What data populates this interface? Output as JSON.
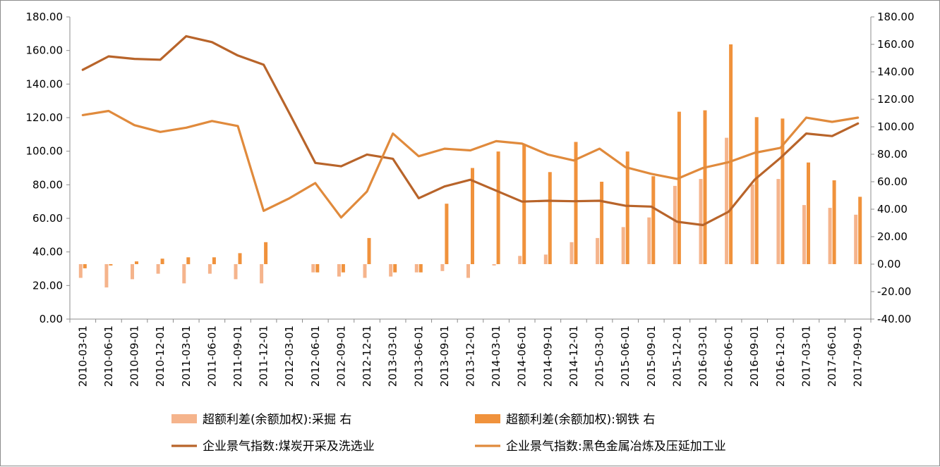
{
  "chart_data": {
    "type": "bar+line",
    "title": "",
    "categories": [
      "2010-03-01",
      "2010-06-01",
      "2010-09-01",
      "2010-12-01",
      "2011-03-01",
      "2011-06-01",
      "2011-09-01",
      "2011-12-01",
      "2012-03-01",
      "2012-06-01",
      "2012-09-01",
      "2012-12-01",
      "2013-03-01",
      "2013-06-01",
      "2013-09-01",
      "2013-12-01",
      "2014-03-01",
      "2014-06-01",
      "2014-09-01",
      "2014-12-01",
      "2015-03-01",
      "2015-06-01",
      "2015-09-01",
      "2015-12-01",
      "2016-03-01",
      "2016-06-01",
      "2016-09-01",
      "2016-12-01",
      "2017-03-01",
      "2017-06-01",
      "2017-09-01"
    ],
    "y_left": {
      "min": 0,
      "max": 180,
      "step": 20,
      "ticks": [
        "0.00",
        "20.00",
        "40.00",
        "60.00",
        "80.00",
        "100.00",
        "120.00",
        "140.00",
        "160.00",
        "180.00"
      ]
    },
    "y_right": {
      "min": -40,
      "max": 180,
      "step": 20,
      "ticks": [
        "-40.00",
        "-20.00",
        "0.00",
        "20.00",
        "40.00",
        "60.00",
        "80.00",
        "100.00",
        "120.00",
        "140.00",
        "160.00",
        "180.00"
      ]
    },
    "legend_position": "bottom",
    "grid": false,
    "series": [
      {
        "name": "超额利差(余额加权):采掘 右",
        "type": "bar",
        "axis": "right",
        "color": "#f5b48c",
        "values": [
          -10,
          -17,
          -11,
          -7,
          -14,
          -7,
          -11,
          -14,
          null,
          -6,
          -9,
          -10,
          -9,
          -6,
          -5,
          -10,
          -1,
          6,
          7,
          16,
          19,
          27,
          34,
          57,
          62,
          92,
          58,
          62,
          43,
          41,
          36
        ]
      },
      {
        "name": "超额利差(余额加权):钢铁 右",
        "type": "bar",
        "axis": "right",
        "color": "#f0923c",
        "values": [
          -3,
          -1,
          2,
          4,
          5,
          5,
          8,
          16,
          null,
          -6,
          -6,
          19,
          -6,
          -6,
          44,
          70,
          82,
          87,
          67,
          89,
          60,
          82,
          64,
          111,
          112,
          160,
          107,
          106,
          74,
          61,
          49
        ]
      },
      {
        "name": "企业景气指数:煤炭开采及洗选业",
        "type": "line",
        "axis": "left",
        "color": "#b8642a",
        "values": [
          148.5,
          156.5,
          155,
          154.5,
          168.5,
          165,
          157,
          151.5,
          122.5,
          93,
          91,
          98,
          95.5,
          72,
          79,
          83,
          76.5,
          70,
          70.5,
          70.2,
          70.5,
          67.5,
          67,
          58,
          56,
          64,
          83,
          96,
          110.5,
          109,
          116.5
        ]
      },
      {
        "name": "企业景气指数:黑色金属冶炼及压延加工业",
        "type": "line",
        "axis": "left",
        "color": "#e08a3c",
        "values": [
          121.5,
          124,
          115.5,
          111.5,
          114,
          118,
          115,
          64.5,
          72,
          81,
          60.5,
          76,
          110.5,
          97,
          101.5,
          100.5,
          106,
          104.5,
          98,
          94.5,
          101.5,
          90.5,
          86.5,
          83.5,
          90,
          93.5,
          99,
          102,
          120,
          117.5,
          120
        ]
      }
    ]
  }
}
